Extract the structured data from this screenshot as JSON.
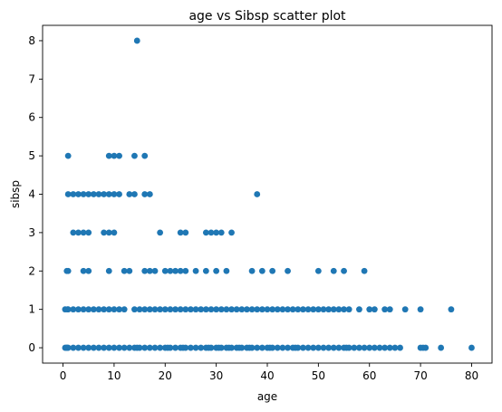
{
  "chart_data": {
    "type": "scatter",
    "title": "age vs Sibsp scatter plot",
    "xlabel": "age",
    "ylabel": "sibsp",
    "xlim": [
      -4,
      84
    ],
    "ylim": [
      -0.4,
      8.4
    ],
    "xticks": [
      0,
      10,
      20,
      30,
      40,
      50,
      60,
      70,
      80
    ],
    "yticks": [
      0,
      1,
      2,
      3,
      4,
      5,
      6,
      7,
      8
    ],
    "grid": false,
    "point_color": "#1f77b4",
    "points": [
      {
        "x": 0.42,
        "y": 0
      },
      {
        "x": 0.67,
        "y": 0
      },
      {
        "x": 0.83,
        "y": 0
      },
      {
        "x": 1,
        "y": 0
      },
      {
        "x": 2,
        "y": 0
      },
      {
        "x": 3,
        "y": 0
      },
      {
        "x": 4,
        "y": 0
      },
      {
        "x": 5,
        "y": 0
      },
      {
        "x": 6,
        "y": 0
      },
      {
        "x": 7,
        "y": 0
      },
      {
        "x": 8,
        "y": 0
      },
      {
        "x": 9,
        "y": 0
      },
      {
        "x": 10,
        "y": 0
      },
      {
        "x": 11,
        "y": 0
      },
      {
        "x": 12,
        "y": 0
      },
      {
        "x": 13,
        "y": 0
      },
      {
        "x": 14,
        "y": 0
      },
      {
        "x": 14.5,
        "y": 0
      },
      {
        "x": 15,
        "y": 0
      },
      {
        "x": 16,
        "y": 0
      },
      {
        "x": 17,
        "y": 0
      },
      {
        "x": 18,
        "y": 0
      },
      {
        "x": 19,
        "y": 0
      },
      {
        "x": 20,
        "y": 0
      },
      {
        "x": 20.5,
        "y": 0
      },
      {
        "x": 21,
        "y": 0
      },
      {
        "x": 22,
        "y": 0
      },
      {
        "x": 23,
        "y": 0
      },
      {
        "x": 23.5,
        "y": 0
      },
      {
        "x": 24,
        "y": 0
      },
      {
        "x": 25,
        "y": 0
      },
      {
        "x": 26,
        "y": 0
      },
      {
        "x": 27,
        "y": 0
      },
      {
        "x": 28,
        "y": 0
      },
      {
        "x": 28.5,
        "y": 0
      },
      {
        "x": 29,
        "y": 0
      },
      {
        "x": 30,
        "y": 0
      },
      {
        "x": 30.5,
        "y": 0
      },
      {
        "x": 31,
        "y": 0
      },
      {
        "x": 32,
        "y": 0
      },
      {
        "x": 32.5,
        "y": 0
      },
      {
        "x": 33,
        "y": 0
      },
      {
        "x": 34,
        "y": 0
      },
      {
        "x": 34.5,
        "y": 0
      },
      {
        "x": 35,
        "y": 0
      },
      {
        "x": 36,
        "y": 0
      },
      {
        "x": 36.5,
        "y": 0
      },
      {
        "x": 37,
        "y": 0
      },
      {
        "x": 38,
        "y": 0
      },
      {
        "x": 39,
        "y": 0
      },
      {
        "x": 40,
        "y": 0
      },
      {
        "x": 40.5,
        "y": 0
      },
      {
        "x": 41,
        "y": 0
      },
      {
        "x": 42,
        "y": 0
      },
      {
        "x": 43,
        "y": 0
      },
      {
        "x": 44,
        "y": 0
      },
      {
        "x": 45,
        "y": 0
      },
      {
        "x": 45.5,
        "y": 0
      },
      {
        "x": 46,
        "y": 0
      },
      {
        "x": 47,
        "y": 0
      },
      {
        "x": 48,
        "y": 0
      },
      {
        "x": 49,
        "y": 0
      },
      {
        "x": 50,
        "y": 0
      },
      {
        "x": 51,
        "y": 0
      },
      {
        "x": 52,
        "y": 0
      },
      {
        "x": 53,
        "y": 0
      },
      {
        "x": 54,
        "y": 0
      },
      {
        "x": 55,
        "y": 0
      },
      {
        "x": 55.5,
        "y": 0
      },
      {
        "x": 56,
        "y": 0
      },
      {
        "x": 57,
        "y": 0
      },
      {
        "x": 58,
        "y": 0
      },
      {
        "x": 59,
        "y": 0
      },
      {
        "x": 60,
        "y": 0
      },
      {
        "x": 61,
        "y": 0
      },
      {
        "x": 62,
        "y": 0
      },
      {
        "x": 63,
        "y": 0
      },
      {
        "x": 64,
        "y": 0
      },
      {
        "x": 65,
        "y": 0
      },
      {
        "x": 66,
        "y": 0
      },
      {
        "x": 70,
        "y": 0
      },
      {
        "x": 70.5,
        "y": 0
      },
      {
        "x": 71,
        "y": 0
      },
      {
        "x": 74,
        "y": 0
      },
      {
        "x": 80,
        "y": 0
      },
      {
        "x": 0.42,
        "y": 1
      },
      {
        "x": 0.92,
        "y": 1
      },
      {
        "x": 1,
        "y": 1
      },
      {
        "x": 2,
        "y": 1
      },
      {
        "x": 3,
        "y": 1
      },
      {
        "x": 4,
        "y": 1
      },
      {
        "x": 5,
        "y": 1
      },
      {
        "x": 6,
        "y": 1
      },
      {
        "x": 7,
        "y": 1
      },
      {
        "x": 8,
        "y": 1
      },
      {
        "x": 9,
        "y": 1
      },
      {
        "x": 10,
        "y": 1
      },
      {
        "x": 11,
        "y": 1
      },
      {
        "x": 12,
        "y": 1
      },
      {
        "x": 14,
        "y": 1
      },
      {
        "x": 15,
        "y": 1
      },
      {
        "x": 16,
        "y": 1
      },
      {
        "x": 17,
        "y": 1
      },
      {
        "x": 18,
        "y": 1
      },
      {
        "x": 19,
        "y": 1
      },
      {
        "x": 20,
        "y": 1
      },
      {
        "x": 21,
        "y": 1
      },
      {
        "x": 22,
        "y": 1
      },
      {
        "x": 23,
        "y": 1
      },
      {
        "x": 24,
        "y": 1
      },
      {
        "x": 25,
        "y": 1
      },
      {
        "x": 26,
        "y": 1
      },
      {
        "x": 27,
        "y": 1
      },
      {
        "x": 28,
        "y": 1
      },
      {
        "x": 29,
        "y": 1
      },
      {
        "x": 30,
        "y": 1
      },
      {
        "x": 31,
        "y": 1
      },
      {
        "x": 32,
        "y": 1
      },
      {
        "x": 33,
        "y": 1
      },
      {
        "x": 34,
        "y": 1
      },
      {
        "x": 35,
        "y": 1
      },
      {
        "x": 36,
        "y": 1
      },
      {
        "x": 37,
        "y": 1
      },
      {
        "x": 38,
        "y": 1
      },
      {
        "x": 39,
        "y": 1
      },
      {
        "x": 40,
        "y": 1
      },
      {
        "x": 41,
        "y": 1
      },
      {
        "x": 42,
        "y": 1
      },
      {
        "x": 43,
        "y": 1
      },
      {
        "x": 44,
        "y": 1
      },
      {
        "x": 45,
        "y": 1
      },
      {
        "x": 46,
        "y": 1
      },
      {
        "x": 47,
        "y": 1
      },
      {
        "x": 48,
        "y": 1
      },
      {
        "x": 49,
        "y": 1
      },
      {
        "x": 50,
        "y": 1
      },
      {
        "x": 51,
        "y": 1
      },
      {
        "x": 52,
        "y": 1
      },
      {
        "x": 53,
        "y": 1
      },
      {
        "x": 54,
        "y": 1
      },
      {
        "x": 55,
        "y": 1
      },
      {
        "x": 56,
        "y": 1
      },
      {
        "x": 58,
        "y": 1
      },
      {
        "x": 60,
        "y": 1
      },
      {
        "x": 61,
        "y": 1
      },
      {
        "x": 63,
        "y": 1
      },
      {
        "x": 64,
        "y": 1
      },
      {
        "x": 67,
        "y": 1
      },
      {
        "x": 70,
        "y": 1
      },
      {
        "x": 76,
        "y": 1
      },
      {
        "x": 0.75,
        "y": 2
      },
      {
        "x": 1,
        "y": 2
      },
      {
        "x": 4,
        "y": 2
      },
      {
        "x": 5,
        "y": 2
      },
      {
        "x": 9,
        "y": 2
      },
      {
        "x": 12,
        "y": 2
      },
      {
        "x": 13,
        "y": 2
      },
      {
        "x": 16,
        "y": 2
      },
      {
        "x": 17,
        "y": 2
      },
      {
        "x": 18,
        "y": 2
      },
      {
        "x": 20,
        "y": 2
      },
      {
        "x": 21,
        "y": 2
      },
      {
        "x": 22,
        "y": 2
      },
      {
        "x": 23,
        "y": 2
      },
      {
        "x": 24,
        "y": 2
      },
      {
        "x": 26,
        "y": 2
      },
      {
        "x": 28,
        "y": 2
      },
      {
        "x": 30,
        "y": 2
      },
      {
        "x": 32,
        "y": 2
      },
      {
        "x": 37,
        "y": 2
      },
      {
        "x": 39,
        "y": 2
      },
      {
        "x": 41,
        "y": 2
      },
      {
        "x": 44,
        "y": 2
      },
      {
        "x": 50,
        "y": 2
      },
      {
        "x": 53,
        "y": 2
      },
      {
        "x": 55,
        "y": 2
      },
      {
        "x": 59,
        "y": 2
      },
      {
        "x": 2,
        "y": 3
      },
      {
        "x": 3,
        "y": 3
      },
      {
        "x": 4,
        "y": 3
      },
      {
        "x": 5,
        "y": 3
      },
      {
        "x": 8,
        "y": 3
      },
      {
        "x": 9,
        "y": 3
      },
      {
        "x": 10,
        "y": 3
      },
      {
        "x": 19,
        "y": 3
      },
      {
        "x": 23,
        "y": 3
      },
      {
        "x": 24,
        "y": 3
      },
      {
        "x": 28,
        "y": 3
      },
      {
        "x": 29,
        "y": 3
      },
      {
        "x": 30,
        "y": 3
      },
      {
        "x": 31,
        "y": 3
      },
      {
        "x": 33,
        "y": 3
      },
      {
        "x": 1,
        "y": 4
      },
      {
        "x": 2,
        "y": 4
      },
      {
        "x": 3,
        "y": 4
      },
      {
        "x": 4,
        "y": 4
      },
      {
        "x": 5,
        "y": 4
      },
      {
        "x": 6,
        "y": 4
      },
      {
        "x": 7,
        "y": 4
      },
      {
        "x": 8,
        "y": 4
      },
      {
        "x": 9,
        "y": 4
      },
      {
        "x": 10,
        "y": 4
      },
      {
        "x": 11,
        "y": 4
      },
      {
        "x": 13,
        "y": 4
      },
      {
        "x": 14,
        "y": 4
      },
      {
        "x": 16,
        "y": 4
      },
      {
        "x": 17,
        "y": 4
      },
      {
        "x": 38,
        "y": 4
      },
      {
        "x": 1,
        "y": 5
      },
      {
        "x": 9,
        "y": 5
      },
      {
        "x": 10,
        "y": 5
      },
      {
        "x": 11,
        "y": 5
      },
      {
        "x": 14,
        "y": 5
      },
      {
        "x": 16,
        "y": 5
      },
      {
        "x": 14.5,
        "y": 8
      }
    ]
  }
}
